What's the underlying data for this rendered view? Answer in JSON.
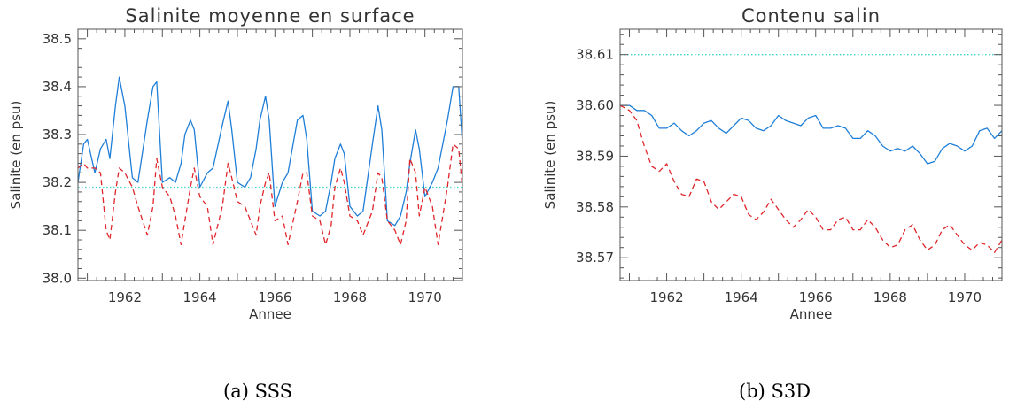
{
  "captions": [
    "(a) SSS",
    "(b) S3D"
  ],
  "colors": {
    "solid": "#1f7fd8",
    "dashed": "#e0262b",
    "reference": "#3fd7c8",
    "axis": "#555555"
  },
  "chart_data": [
    {
      "type": "line",
      "title": "Salinite moyenne en surface",
      "xlabel": "Annee",
      "ylabel": "Salinite (en psu)",
      "xlim": [
        1960.75,
        1971.0
      ],
      "ylim": [
        37.995,
        38.52
      ],
      "xticks": [
        1962,
        1964,
        1966,
        1968,
        1970
      ],
      "yticks": [
        38.0,
        38.1,
        38.2,
        38.3,
        38.4,
        38.5
      ],
      "ytick_labels": [
        "38.0",
        "38.1",
        "38.2",
        "38.3",
        "38.4",
        "38.5"
      ],
      "reference_line": 38.19,
      "series": [
        {
          "style": "solid",
          "x": [
            1960.75,
            1960.9,
            1961.0,
            1961.2,
            1961.35,
            1961.5,
            1961.6,
            1961.75,
            1961.85,
            1962.0,
            1962.2,
            1962.35,
            1962.6,
            1962.75,
            1962.85,
            1963.0,
            1963.2,
            1963.35,
            1963.5,
            1963.6,
            1963.75,
            1963.85,
            1964.0,
            1964.2,
            1964.35,
            1964.6,
            1964.75,
            1964.85,
            1965.0,
            1965.2,
            1965.35,
            1965.5,
            1965.6,
            1965.75,
            1965.85,
            1966.0,
            1966.2,
            1966.35,
            1966.6,
            1966.75,
            1966.85,
            1967.0,
            1967.2,
            1967.35,
            1967.5,
            1967.6,
            1967.75,
            1967.85,
            1968.0,
            1968.2,
            1968.35,
            1968.6,
            1968.75,
            1968.85,
            1969.0,
            1969.2,
            1969.35,
            1969.5,
            1969.6,
            1969.75,
            1969.85,
            1970.0,
            1970.2,
            1970.35,
            1970.6,
            1970.75,
            1970.9,
            1971.0
          ],
          "y": [
            38.2,
            38.28,
            38.29,
            38.22,
            38.27,
            38.29,
            38.25,
            38.36,
            38.42,
            38.36,
            38.21,
            38.2,
            38.33,
            38.4,
            38.41,
            38.2,
            38.21,
            38.2,
            38.24,
            38.3,
            38.33,
            38.31,
            38.19,
            38.22,
            38.23,
            38.32,
            38.37,
            38.31,
            38.2,
            38.19,
            38.21,
            38.27,
            38.33,
            38.38,
            38.33,
            38.15,
            38.2,
            38.22,
            38.33,
            38.34,
            38.29,
            38.14,
            38.13,
            38.14,
            38.2,
            38.25,
            38.28,
            38.26,
            38.15,
            38.13,
            38.14,
            38.28,
            38.36,
            38.31,
            38.12,
            38.11,
            38.13,
            38.18,
            38.24,
            38.31,
            38.27,
            38.17,
            38.2,
            38.23,
            38.33,
            38.4,
            38.4,
            38.28
          ]
        },
        {
          "style": "dashed",
          "x": [
            1960.75,
            1960.9,
            1961.0,
            1961.2,
            1961.35,
            1961.5,
            1961.6,
            1961.75,
            1961.85,
            1962.0,
            1962.2,
            1962.35,
            1962.6,
            1962.75,
            1962.85,
            1963.0,
            1963.2,
            1963.35,
            1963.5,
            1963.6,
            1963.75,
            1963.85,
            1964.0,
            1964.2,
            1964.35,
            1964.6,
            1964.75,
            1964.85,
            1965.0,
            1965.2,
            1965.35,
            1965.5,
            1965.6,
            1965.75,
            1965.85,
            1966.0,
            1966.2,
            1966.35,
            1966.6,
            1966.75,
            1966.85,
            1967.0,
            1967.2,
            1967.35,
            1967.5,
            1967.6,
            1967.75,
            1967.85,
            1968.0,
            1968.2,
            1968.35,
            1968.6,
            1968.75,
            1968.85,
            1969.0,
            1969.2,
            1969.35,
            1969.5,
            1969.6,
            1969.75,
            1969.85,
            1970.0,
            1970.2,
            1970.35,
            1970.6,
            1970.75,
            1970.9,
            1971.0
          ],
          "y": [
            38.23,
            38.24,
            38.23,
            38.23,
            38.22,
            38.1,
            38.08,
            38.18,
            38.23,
            38.22,
            38.19,
            38.15,
            38.09,
            38.15,
            38.25,
            38.19,
            38.17,
            38.13,
            38.07,
            38.12,
            38.19,
            38.23,
            38.17,
            38.15,
            38.07,
            38.15,
            38.24,
            38.21,
            38.16,
            38.15,
            38.12,
            38.09,
            38.15,
            38.2,
            38.22,
            38.12,
            38.13,
            38.07,
            38.16,
            38.22,
            38.22,
            38.13,
            38.12,
            38.07,
            38.11,
            38.19,
            38.23,
            38.2,
            38.13,
            38.12,
            38.09,
            38.14,
            38.22,
            38.21,
            38.12,
            38.1,
            38.07,
            38.12,
            38.25,
            38.22,
            38.13,
            38.19,
            38.15,
            38.07,
            38.19,
            38.28,
            38.27,
            38.19
          ]
        }
      ]
    },
    {
      "type": "line",
      "title": "Contenu salin",
      "xlabel": "Annee",
      "ylabel": "Salinite (en psu)",
      "xlim": [
        1960.75,
        1971.0
      ],
      "ylim": [
        38.5655,
        38.615
      ],
      "xticks": [
        1962,
        1964,
        1966,
        1968,
        1970
      ],
      "yticks": [
        38.57,
        38.58,
        38.59,
        38.6,
        38.61
      ],
      "ytick_labels": [
        "38.57",
        "38.58",
        "38.59",
        "38.60",
        "38.61"
      ],
      "reference_line": 38.61,
      "series": [
        {
          "style": "solid",
          "x": [
            1960.75,
            1961.0,
            1961.2,
            1961.4,
            1961.6,
            1961.8,
            1962.0,
            1962.2,
            1962.4,
            1962.6,
            1962.8,
            1963.0,
            1963.2,
            1963.4,
            1963.6,
            1963.8,
            1964.0,
            1964.2,
            1964.4,
            1964.6,
            1964.8,
            1965.0,
            1965.2,
            1965.4,
            1965.6,
            1965.8,
            1966.0,
            1966.2,
            1966.4,
            1966.6,
            1966.8,
            1967.0,
            1967.2,
            1967.4,
            1967.6,
            1967.8,
            1968.0,
            1968.2,
            1968.4,
            1968.6,
            1968.8,
            1969.0,
            1969.2,
            1969.4,
            1969.6,
            1969.8,
            1970.0,
            1970.2,
            1970.4,
            1970.6,
            1970.8,
            1971.0
          ],
          "y": [
            38.6,
            38.6,
            38.599,
            38.599,
            38.598,
            38.5955,
            38.5955,
            38.5965,
            38.595,
            38.594,
            38.595,
            38.5965,
            38.597,
            38.5955,
            38.5945,
            38.596,
            38.5975,
            38.597,
            38.5955,
            38.595,
            38.596,
            38.598,
            38.597,
            38.5965,
            38.596,
            38.5975,
            38.598,
            38.5955,
            38.5955,
            38.596,
            38.5955,
            38.5935,
            38.5935,
            38.595,
            38.594,
            38.592,
            38.591,
            38.5915,
            38.591,
            38.592,
            38.5905,
            38.5885,
            38.589,
            38.5915,
            38.5925,
            38.592,
            38.591,
            38.592,
            38.595,
            38.5955,
            38.5935,
            38.595
          ]
        },
        {
          "style": "dashed",
          "x": [
            1960.75,
            1961.0,
            1961.2,
            1961.4,
            1961.6,
            1961.8,
            1962.0,
            1962.2,
            1962.4,
            1962.6,
            1962.8,
            1963.0,
            1963.2,
            1963.4,
            1963.6,
            1963.8,
            1964.0,
            1964.2,
            1964.4,
            1964.6,
            1964.8,
            1965.0,
            1965.2,
            1965.4,
            1965.6,
            1965.8,
            1966.0,
            1966.2,
            1966.4,
            1966.6,
            1966.8,
            1967.0,
            1967.2,
            1967.4,
            1967.6,
            1967.8,
            1968.0,
            1968.2,
            1968.4,
            1968.6,
            1968.8,
            1969.0,
            1969.2,
            1969.4,
            1969.6,
            1969.8,
            1970.0,
            1970.2,
            1970.4,
            1970.6,
            1970.8,
            1971.0
          ],
          "y": [
            38.6,
            38.599,
            38.597,
            38.592,
            38.588,
            38.587,
            38.5885,
            38.585,
            38.5825,
            38.582,
            38.5855,
            38.585,
            38.581,
            38.5795,
            38.581,
            38.5825,
            38.582,
            38.5785,
            38.5775,
            38.579,
            38.5815,
            38.5795,
            38.5775,
            38.576,
            38.5775,
            38.5795,
            38.578,
            38.5755,
            38.5755,
            38.5775,
            38.578,
            38.5755,
            38.5755,
            38.5775,
            38.576,
            38.5735,
            38.572,
            38.5725,
            38.5755,
            38.5765,
            38.5735,
            38.5715,
            38.5725,
            38.5755,
            38.5765,
            38.5745,
            38.5725,
            38.5715,
            38.573,
            38.5725,
            38.571,
            38.5735
          ]
        }
      ]
    }
  ]
}
